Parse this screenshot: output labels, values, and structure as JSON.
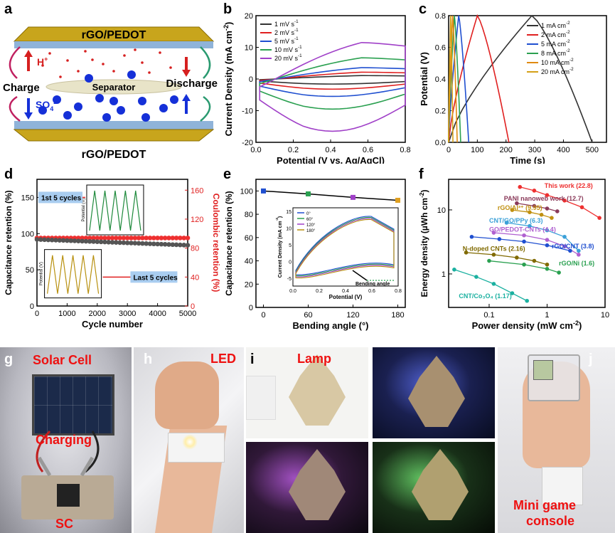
{
  "panel_a": {
    "letter": "a",
    "top_electrode": "rGO/PEDOT",
    "bottom_electrode": "rGO/PEDOT",
    "cation": "H",
    "cation_sup": "+",
    "anion": "SO",
    "anion_sub": "4",
    "anion_sup": "2-",
    "separator": "Separator",
    "charge": "Charge",
    "discharge": "Discharge",
    "colors": {
      "electrode": "#c8a51c",
      "sheet": "#8fb3d9",
      "ion_red": "#d62020",
      "ion_blue": "#1530d8"
    }
  },
  "panel_b": {
    "letter": "b",
    "chart_data": {
      "type": "line",
      "xlabel": "Potential (V vs. Ag/AgCl)",
      "ylabel": "Current Density (mA cm",
      "ylabel_sup": "-2",
      "ylabel_end": ")",
      "xlim": [
        0.0,
        0.8
      ],
      "ylim": [
        -20,
        20
      ],
      "xticks": [
        "0.0",
        "0.2",
        "0.4",
        "0.6",
        "0.8"
      ],
      "yticks": [
        "-20",
        "-10",
        "0",
        "10",
        "20"
      ],
      "legend_pos": "top-left",
      "series": [
        {
          "name": "1 mV s",
          "sup": "-1",
          "color": "#333333",
          "upper_peak": 1.5,
          "lower_min": -1.6
        },
        {
          "name": "2 mV s",
          "sup": "-1",
          "color": "#e02020",
          "upper_peak": 3.0,
          "lower_min": -3.2
        },
        {
          "name": "5 mV s",
          "sup": "-1",
          "color": "#1f4fd0",
          "upper_peak": 5.0,
          "lower_min": -5.5
        },
        {
          "name": "10 mV s",
          "sup": "-1",
          "color": "#2aa050",
          "upper_peak": 9.3,
          "lower_min": -9.5
        },
        {
          "name": "20 mV s",
          "sup": "-1",
          "color": "#a040c8",
          "upper_peak": 16.0,
          "lower_min": -16.5
        }
      ]
    }
  },
  "panel_c": {
    "letter": "c",
    "chart_data": {
      "type": "line",
      "xlabel": "Time (s)",
      "ylabel": "Potential (V)",
      "xlim": [
        0,
        550
      ],
      "ylim": [
        0.0,
        0.8
      ],
      "xticks": [
        "0",
        "100",
        "200",
        "300",
        "400",
        "500"
      ],
      "yticks": [
        "0.0",
        "0.2",
        "0.4",
        "0.6",
        "0.8"
      ],
      "legend_pos": "top-right",
      "series": [
        {
          "name": "1 mA cm",
          "sup": "-2",
          "color": "#333333",
          "peak_t": 290,
          "end_t": 500
        },
        {
          "name": "2 mA cm",
          "sup": "-2",
          "color": "#e02020",
          "peak_t": 100,
          "end_t": 210
        },
        {
          "name": "5 mA cm",
          "sup": "-2",
          "color": "#1f4fd0",
          "peak_t": 35,
          "end_t": 70
        },
        {
          "name": "8 mA cm",
          "sup": "-2",
          "color": "#2aa050",
          "peak_t": 20,
          "end_t": 42
        },
        {
          "name": "10 mA cm",
          "sup": "-2",
          "color": "#e08a10",
          "peak_t": 14,
          "end_t": 30
        },
        {
          "name": "20 mA cm",
          "sup": "-2",
          "color": "#d4a017",
          "peak_t": 7,
          "end_t": 15
        }
      ]
    }
  },
  "panel_d": {
    "letter": "d",
    "chart_data": {
      "type": "scatter",
      "xlabel": "Cycle number",
      "ylabel_left": "Capacitance retention (%)",
      "ylabel_right": "Coulombic retention (%)",
      "xlim": [
        0,
        5000
      ],
      "ylim_left": [
        0,
        175
      ],
      "ylim_right": [
        0,
        175
      ],
      "xticks": [
        "0",
        "1000",
        "2000",
        "3000",
        "4000",
        "5000"
      ],
      "yticks_left": [
        "0",
        "50",
        "100",
        "150"
      ],
      "yticks_right": [
        "0",
        "40",
        "80",
        "120",
        "160"
      ],
      "capacitance_start": 92,
      "capacitance_end": 84,
      "coulombic_value": 94,
      "annotation_first": "1st 5 cycles",
      "annotation_last": "Last 5 cycles",
      "inset_ylabel": "Potential (V)",
      "colors": {
        "capacitance": "#555555",
        "coulombic": "#ee3030",
        "inset1": "#1f8a3c",
        "inset2": "#b8900f",
        "callout": "#a9cdf0"
      }
    }
  },
  "panel_e": {
    "letter": "e",
    "chart_data": {
      "type": "line",
      "xlabel": "Bending angle (°)",
      "ylabel": "Capacitance retention (%)",
      "xlim": [
        -10,
        190
      ],
      "ylim": [
        0,
        110
      ],
      "xticks": [
        "0",
        "60",
        "120",
        "180"
      ],
      "yticks": [
        "0",
        "20",
        "40",
        "60",
        "80",
        "100"
      ],
      "x": [
        0,
        60,
        120,
        180
      ],
      "y": [
        100,
        97.5,
        94.5,
        92
      ],
      "marker_colors": [
        "#1f4fd0",
        "#2aa050",
        "#a040c8",
        "#e0a020"
      ],
      "inset": {
        "xlabel": "Potential (V)",
        "ylabel": "Current Density (mA cm",
        "ylabel_sup": "-2",
        "ylabel_end": ")",
        "xticks": [
          "0.0",
          "0.2",
          "0.4",
          "0.6",
          "0.8"
        ],
        "yticks": [
          "-5",
          "0",
          "5",
          "10",
          "15"
        ],
        "legend": [
          "0°",
          "60°",
          "120°",
          "180°"
        ],
        "legend_colors": [
          "#1f4fd0",
          "#2aa050",
          "#a040c8",
          "#b8900f"
        ],
        "annotation": "Bending angle"
      }
    }
  },
  "panel_f": {
    "letter": "f",
    "chart_data": {
      "type": "scatter",
      "xlabel": "Power density (mW cm",
      "xlabel_sup": "-2",
      "xlabel_end": ")",
      "ylabel": "Energy density (µWh cm",
      "ylabel_sup": "-2",
      "ylabel_end": ")",
      "scale": "log-log",
      "xlim": [
        0.02,
        10
      ],
      "ylim": [
        0.3,
        30
      ],
      "xticks": [
        "0.1",
        "1",
        "10"
      ],
      "yticks": [
        "1",
        "10"
      ],
      "series": [
        {
          "name": "This work (22.8)",
          "color": "#ee3030",
          "pts": [
            [
              0.34,
              22.8
            ],
            [
              0.6,
              20
            ],
            [
              1.0,
              17
            ],
            [
              2.0,
              14
            ],
            [
              4.0,
              11
            ],
            [
              8.0,
              7.5
            ]
          ]
        },
        {
          "name": "PANI nanoweb work (12.7)",
          "color": "#8a3a5a",
          "pts": [
            [
              0.3,
              12.7
            ],
            [
              0.6,
              11.5
            ],
            [
              1.0,
              10.5
            ],
            [
              1.5,
              9.5
            ]
          ]
        },
        {
          "name": "rGO/Al³⁺ (9.95)",
          "color": "#c09010",
          "pts": [
            [
              0.25,
              9.95
            ],
            [
              0.5,
              9.2
            ],
            [
              0.8,
              8.4
            ],
            [
              1.2,
              7.5
            ]
          ]
        },
        {
          "name": "CNT/GO/PPy (6.3)",
          "color": "#3aa0d8",
          "pts": [
            [
              0.2,
              6.3
            ],
            [
              0.5,
              5.6
            ],
            [
              1.0,
              4.8
            ],
            [
              2.0,
              3.8
            ],
            [
              3.5,
              2.3
            ]
          ]
        },
        {
          "name": "GO/PEDOT-CNTs (4.4)",
          "color": "#b060d0",
          "pts": [
            [
              0.12,
              4.4
            ],
            [
              0.4,
              4.0
            ],
            [
              1.0,
              3.4
            ],
            [
              2.0,
              2.7
            ],
            [
              3.5,
              2.0
            ]
          ]
        },
        {
          "name": "rGO/CNT (3.8)",
          "color": "#1f4fd0",
          "pts": [
            [
              0.05,
              3.8
            ],
            [
              0.15,
              3.5
            ],
            [
              0.4,
              3.2
            ],
            [
              1.0,
              2.8
            ],
            [
              2.5,
              2.3
            ]
          ]
        },
        {
          "name": "N-doped CNTs (2.16)",
          "color": "#806a00",
          "pts": [
            [
              0.04,
              2.16
            ],
            [
              0.12,
              2.0
            ],
            [
              0.3,
              1.8
            ],
            [
              0.6,
              1.6
            ],
            [
              1.0,
              1.4
            ]
          ]
        },
        {
          "name": "rGO/Ni (1.6)",
          "color": "#2aa050",
          "pts": [
            [
              0.1,
              1.6
            ],
            [
              0.4,
              1.4
            ],
            [
              1.0,
              1.2
            ],
            [
              1.6,
              1.05
            ]
          ]
        },
        {
          "name": "CNT/Co₃O₄ (1.17)",
          "color": "#1ab0a0",
          "pts": [
            [
              0.025,
              1.17
            ],
            [
              0.06,
              0.9
            ],
            [
              0.12,
              0.7
            ],
            [
              0.25,
              0.5
            ],
            [
              0.45,
              0.38
            ]
          ]
        }
      ]
    }
  },
  "photos": {
    "g": {
      "letter": "g",
      "title": "Solar Cell",
      "middle": "Charging",
      "bottom": "SC"
    },
    "h": {
      "letter": "h",
      "title": "LED"
    },
    "i": {
      "letter": "i",
      "title": "Lamp"
    },
    "j": {
      "letter": "j",
      "title_line1": "Mini game",
      "title_line2": "console"
    }
  }
}
